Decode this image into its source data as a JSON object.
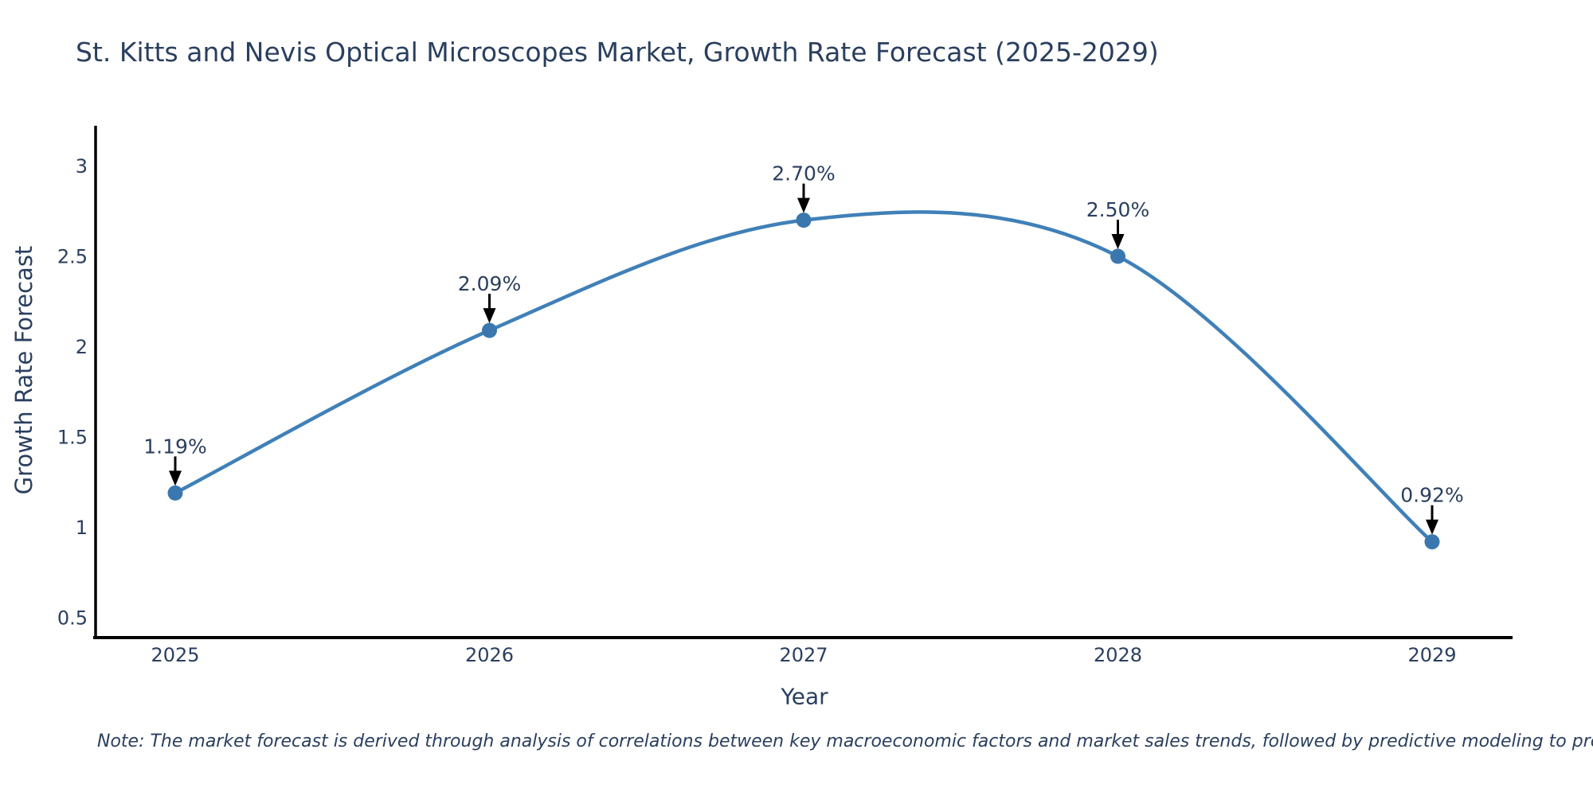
{
  "title": "St. Kitts and Nevis Optical Microscopes Market, Growth Rate Forecast (2025-2029)",
  "note": "Note: The market forecast is derived through analysis of correlations between key macroeconomic factors and market sales trends, followed by predictive modeling to project future sales",
  "axes": {
    "x_label": "Year",
    "y_label": "Growth Rate Forecast",
    "x_tick_labels": [
      "2025",
      "2026",
      "2027",
      "2028",
      "2029"
    ],
    "y_tick_labels": [
      "3",
      "2.5",
      "2",
      "1.5",
      "1",
      "0.5"
    ]
  },
  "chart_data": {
    "type": "line",
    "title": "St. Kitts and Nevis Optical Microscopes Market, Growth Rate Forecast (2025-2029)",
    "xlabel": "Year",
    "ylabel": "Growth Rate Forecast",
    "x": [
      2025,
      2026,
      2027,
      2028,
      2029
    ],
    "series": [
      {
        "name": "Growth Rate Forecast",
        "values": [
          1.19,
          2.09,
          2.7,
          2.5,
          0.92
        ]
      }
    ],
    "point_labels": [
      "1.19%",
      "2.09%",
      "2.70%",
      "2.50%",
      "0.92%"
    ],
    "yticks": [
      3,
      2.5,
      2,
      1.5,
      1,
      0.5
    ],
    "ylim": [
      0.39,
      3.24
    ],
    "grid": false,
    "legend": false,
    "line_shape": "spline",
    "annotation_arrows": "black arrow pointing down from each percentage label to its data point",
    "colors": {
      "line": "#4080b8",
      "marker": "#3a77ae",
      "arrow": "#000000",
      "axis": "#000000",
      "text": "#2a3f5f",
      "background": "#ffffff"
    }
  }
}
